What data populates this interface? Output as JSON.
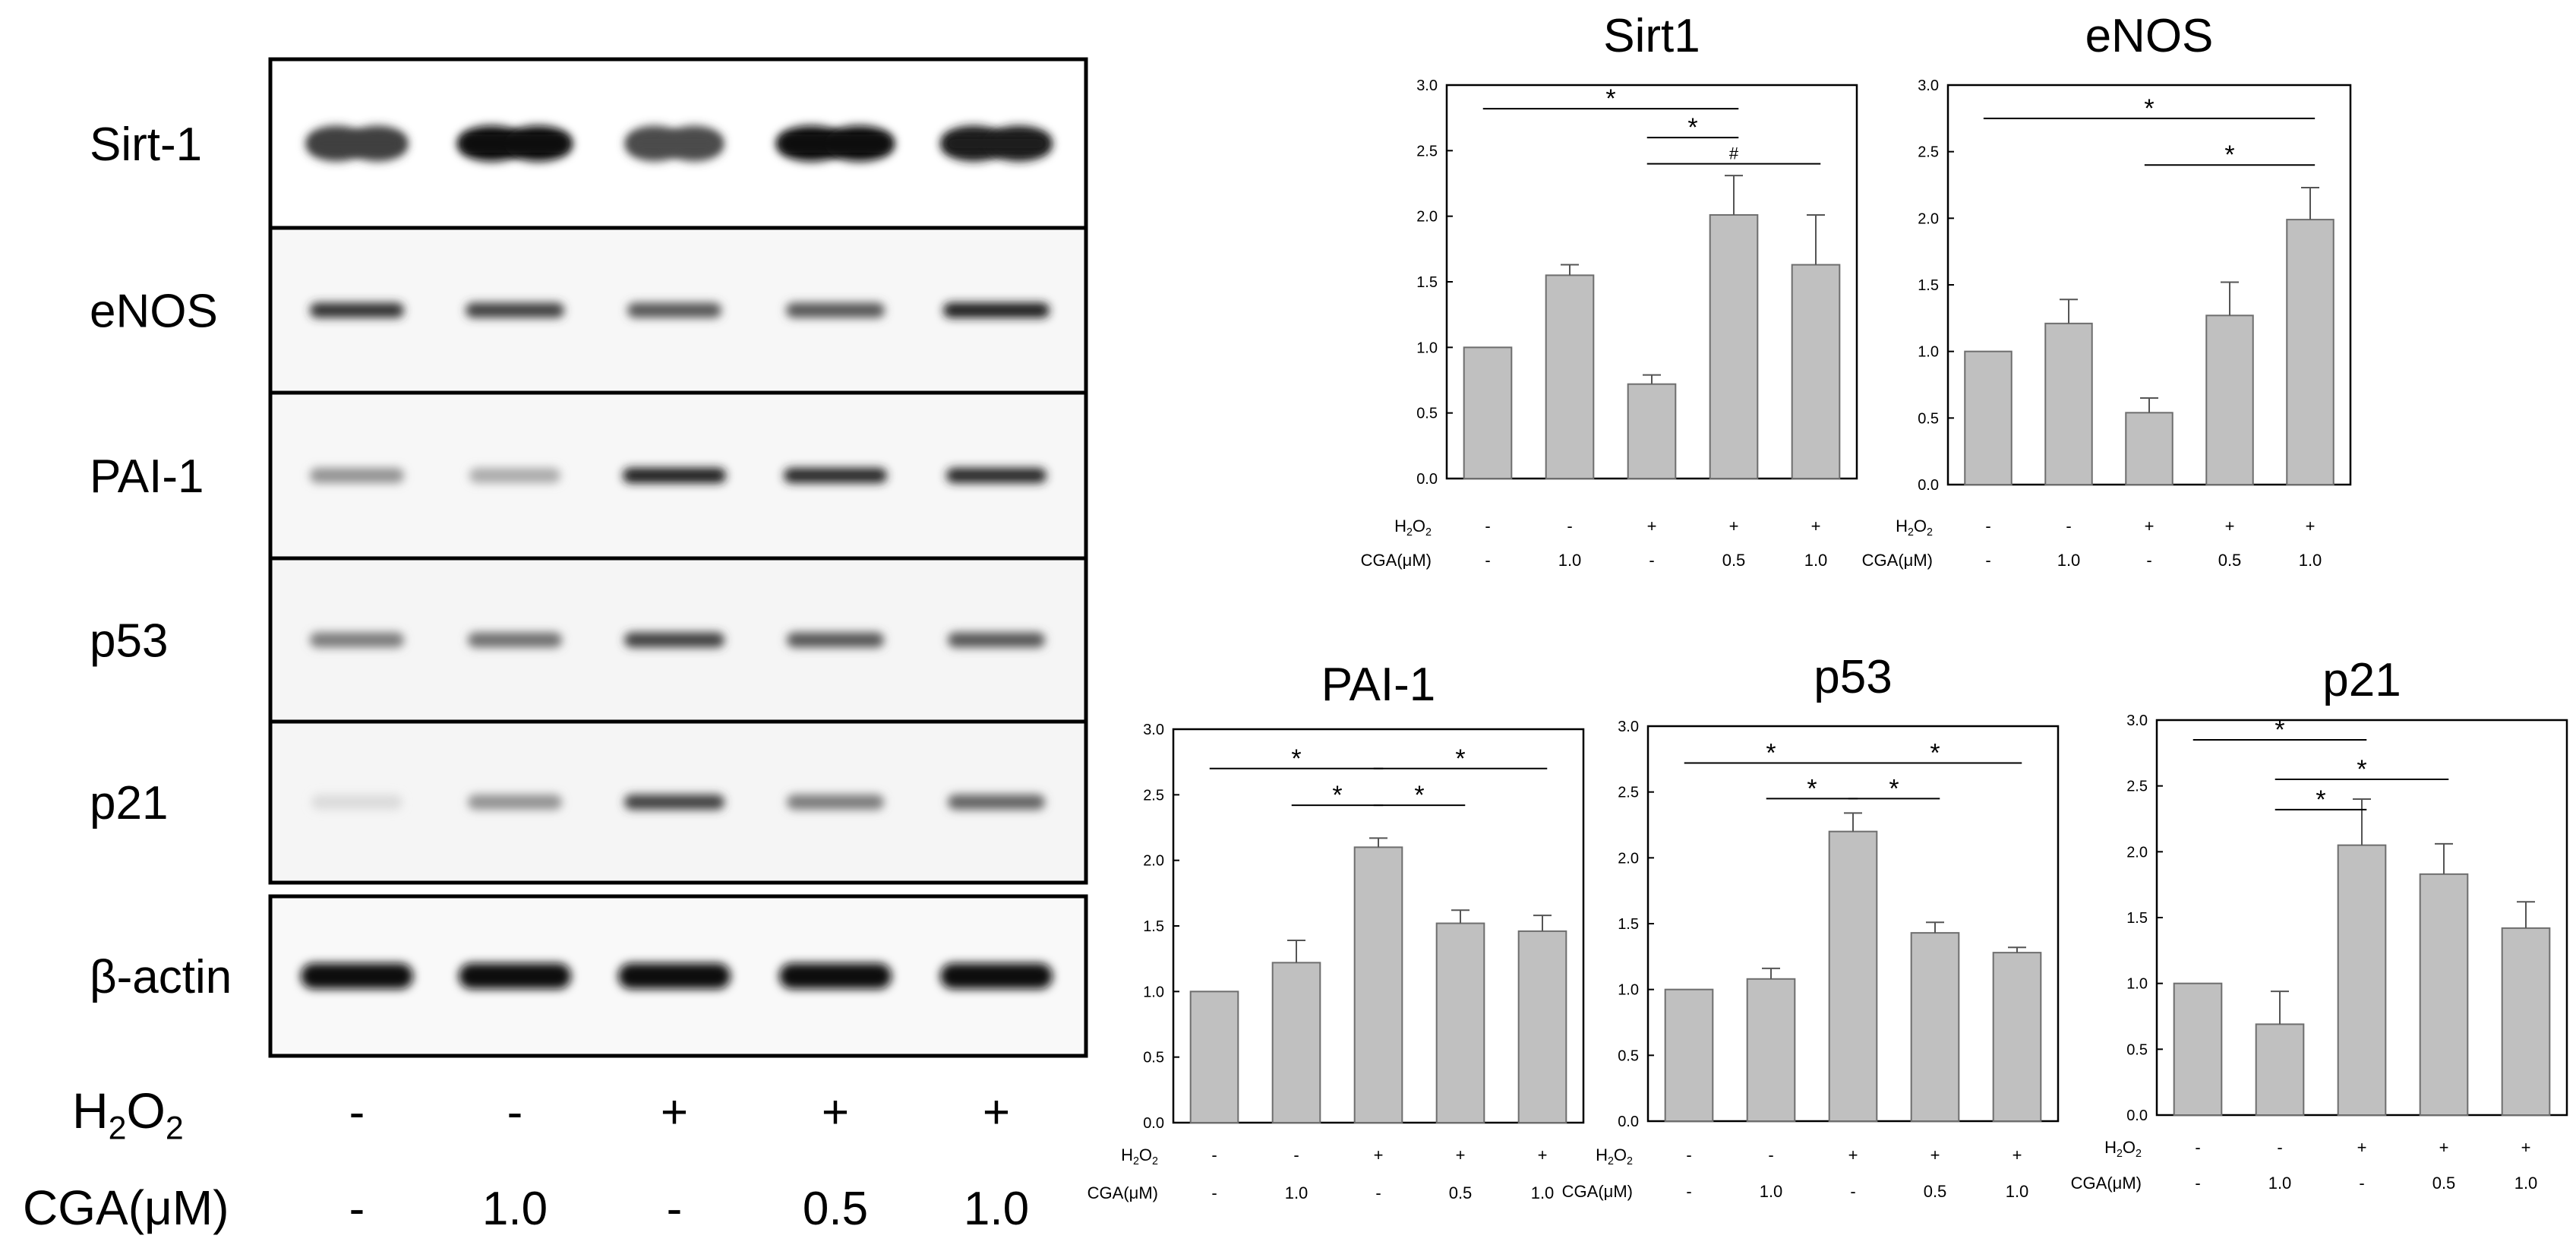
{
  "blot": {
    "rows": [
      {
        "label": "Sirt-1",
        "intensity": [
          0.8,
          1.0,
          0.75,
          1.0,
          0.95
        ],
        "width": [
          0.62,
          0.7,
          0.6,
          0.72,
          0.68
        ],
        "pinch": true,
        "bg": "#ffffff"
      },
      {
        "label": "eNOS",
        "intensity": [
          0.85,
          0.8,
          0.7,
          0.7,
          0.95
        ],
        "width": [
          0.62,
          0.65,
          0.62,
          0.65,
          0.7
        ],
        "pinch": false,
        "bg": "#f7f7f7"
      },
      {
        "label": "PAI-1",
        "intensity": [
          0.45,
          0.35,
          0.95,
          0.9,
          0.9
        ],
        "width": [
          0.62,
          0.6,
          0.68,
          0.68,
          0.66
        ],
        "pinch": false,
        "bg": "#f7f7f7"
      },
      {
        "label": "p53",
        "intensity": [
          0.55,
          0.6,
          0.8,
          0.7,
          0.7
        ],
        "width": [
          0.62,
          0.62,
          0.66,
          0.64,
          0.64
        ],
        "pinch": false,
        "bg": "#f5f5f5"
      },
      {
        "label": "p21",
        "intensity": [
          0.15,
          0.45,
          0.8,
          0.55,
          0.65
        ],
        "width": [
          0.6,
          0.62,
          0.66,
          0.64,
          0.64
        ],
        "pinch": false,
        "bg": "#f5f5f5"
      },
      {
        "label": "β-actin",
        "intensity": [
          1.0,
          1.0,
          1.0,
          1.0,
          1.0
        ],
        "width": [
          0.74,
          0.74,
          0.74,
          0.74,
          0.74
        ],
        "pinch": false,
        "bg": "#f9f9f9"
      }
    ],
    "treatments": {
      "h2o2_label": "H2O2",
      "cga_label": "CGA(μM)",
      "h2o2": [
        "-",
        "-",
        "+",
        "+",
        "+"
      ],
      "cga": [
        "-",
        "1.0",
        "-",
        "0.5",
        "1.0"
      ]
    }
  },
  "chart_data": [
    {
      "type": "bar",
      "title": "Sirt1",
      "ylim": [
        0,
        3.0
      ],
      "yticks": [
        "0.0",
        "0.5",
        "1.0",
        "1.5",
        "2.0",
        "2.5",
        "3.0"
      ],
      "values": [
        1.0,
        1.55,
        0.72,
        2.01,
        1.63
      ],
      "errors": [
        0,
        0.08,
        0.07,
        0.3,
        0.38
      ],
      "h2o2_label": "H2O2",
      "cga_label": "CGA(μM)",
      "h2o2": [
        "-",
        "-",
        "+",
        "+",
        "+"
      ],
      "cga": [
        "-",
        "1.0",
        "-",
        "0.5",
        "1.0"
      ],
      "annotations": [
        {
          "from": 0,
          "to": 3,
          "y": 2.82,
          "label": "*"
        },
        {
          "from": 2,
          "to": 3,
          "y": 2.6,
          "label": "*"
        },
        {
          "from": 2,
          "to": 4,
          "y": 2.4,
          "label": "#"
        }
      ],
      "fill": "#c0c0c0"
    },
    {
      "type": "bar",
      "title": "eNOS",
      "ylim": [
        0,
        3.0
      ],
      "yticks": [
        "0.0",
        "0.5",
        "1.0",
        "1.5",
        "2.0",
        "2.5",
        "3.0"
      ],
      "values": [
        1.0,
        1.21,
        0.54,
        1.27,
        1.99
      ],
      "errors": [
        0,
        0.18,
        0.11,
        0.25,
        0.24
      ],
      "h2o2_label": "H2O2",
      "cga_label": "CGA(μM)",
      "h2o2": [
        "-",
        "-",
        "+",
        "+",
        "+"
      ],
      "cga": [
        "-",
        "1.0",
        "-",
        "0.5",
        "1.0"
      ],
      "annotations": [
        {
          "from": 0,
          "to": 4,
          "y": 2.75,
          "label": "*"
        },
        {
          "from": 2,
          "to": 4,
          "y": 2.4,
          "label": "*"
        }
      ],
      "fill": "#c0c0c0"
    },
    {
      "type": "bar",
      "title": "PAI-1",
      "ylim": [
        0,
        3.0
      ],
      "yticks": [
        "0.0",
        "0.5",
        "1.0",
        "1.5",
        "2.0",
        "2.5",
        "3.0"
      ],
      "values": [
        1.0,
        1.22,
        2.1,
        1.52,
        1.46
      ],
      "errors": [
        0,
        0.17,
        0.07,
        0.1,
        0.12
      ],
      "h2o2_label": "H2O2",
      "cga_label": "CGA(μM)",
      "h2o2": [
        "-",
        "-",
        "+",
        "+",
        "+"
      ],
      "cga": [
        "-",
        "1.0",
        "-",
        "0.5",
        "1.0"
      ],
      "annotations": [
        {
          "from": 0,
          "to": 2,
          "y": 2.7,
          "label": "*"
        },
        {
          "from": 2,
          "to": 4,
          "y": 2.7,
          "label": "*"
        },
        {
          "from": 1,
          "to": 2,
          "y": 2.42,
          "label": "*"
        },
        {
          "from": 2,
          "to": 3,
          "y": 2.42,
          "label": "*"
        }
      ],
      "fill": "#c0c0c0"
    },
    {
      "type": "bar",
      "title": "p53",
      "ylim": [
        0,
        3.0
      ],
      "yticks": [
        "0.0",
        "0.5",
        "1.0",
        "1.5",
        "2.0",
        "2.5",
        "3.0"
      ],
      "values": [
        1.0,
        1.08,
        2.2,
        1.43,
        1.28
      ],
      "errors": [
        0,
        0.08,
        0.14,
        0.08,
        0.04
      ],
      "h2o2_label": "H2O2",
      "cga_label": "CGA(μM)",
      "h2o2": [
        "-",
        "-",
        "+",
        "+",
        "+"
      ],
      "cga": [
        "-",
        "1.0",
        "-",
        "0.5",
        "1.0"
      ],
      "annotations": [
        {
          "from": 0,
          "to": 2,
          "y": 2.72,
          "label": "*"
        },
        {
          "from": 2,
          "to": 4,
          "y": 2.72,
          "label": "*"
        },
        {
          "from": 1,
          "to": 2,
          "y": 2.45,
          "label": "*"
        },
        {
          "from": 2,
          "to": 3,
          "y": 2.45,
          "label": "*"
        }
      ],
      "fill": "#c0c0c0"
    },
    {
      "type": "bar",
      "title": "p21",
      "ylim": [
        0,
        3.0
      ],
      "yticks": [
        "0.0",
        "0.5",
        "1.0",
        "1.5",
        "2.0",
        "2.5",
        "3.0"
      ],
      "values": [
        1.0,
        0.69,
        2.05,
        1.83,
        1.42
      ],
      "errors": [
        0,
        0.25,
        0.35,
        0.23,
        0.2
      ],
      "h2o2_label": "H2O2",
      "cga_label": "CGA(μM)",
      "h2o2": [
        "-",
        "-",
        "+",
        "+",
        "+"
      ],
      "cga": [
        "-",
        "1.0",
        "-",
        "0.5",
        "1.0"
      ],
      "annotations": [
        {
          "from": 0,
          "to": 2,
          "y": 2.85,
          "label": "*"
        },
        {
          "from": 1,
          "to": 3,
          "y": 2.55,
          "label": "*"
        },
        {
          "from": 1,
          "to": 2,
          "y": 2.32,
          "label": "*"
        }
      ],
      "fill": "#c0c0c0"
    }
  ]
}
